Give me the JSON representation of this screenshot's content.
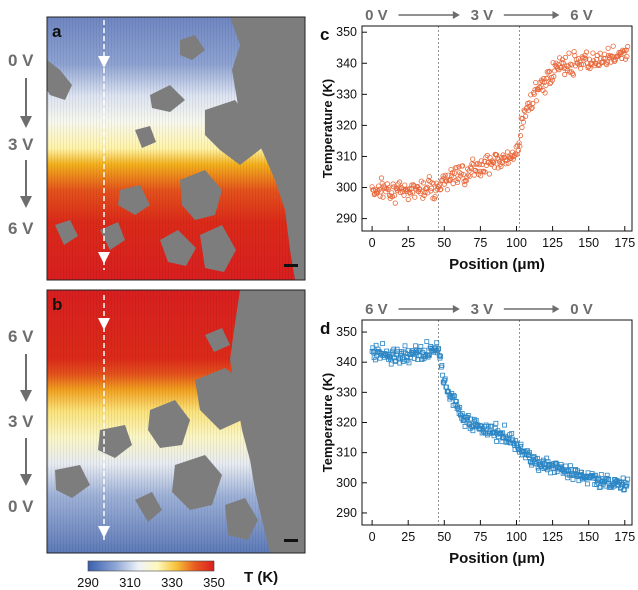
{
  "panels": {
    "a": {
      "label": "a",
      "voltages": [
        "0 V",
        "3 V",
        "6 V"
      ]
    },
    "b": {
      "label": "b",
      "voltages": [
        "6 V",
        "3 V",
        "0 V"
      ]
    }
  },
  "colorbar": {
    "ticks": [
      "290",
      "310",
      "330",
      "350"
    ],
    "label": "T (K)",
    "colors": [
      "#3a5fae",
      "#6f8fcb",
      "#dfe6f3",
      "#ffffd0",
      "#f7d23e",
      "#ea6b24",
      "#d91f1f"
    ]
  },
  "chart_data": [
    {
      "type": "scatter",
      "panel": "c",
      "sequence_labels": [
        "0 V",
        "3 V",
        "6 V"
      ],
      "xlabel": "Position (μm)",
      "ylabel": "Temperature (K)",
      "xlim": [
        -7,
        180
      ],
      "ylim": [
        286,
        352
      ],
      "x_ticks": [
        "0",
        "25",
        "50",
        "75",
        "100",
        "125",
        "150",
        "175"
      ],
      "y_ticks": [
        "290",
        "300",
        "310",
        "320",
        "330",
        "340",
        "350"
      ],
      "dividers_x": [
        46,
        102
      ],
      "marker": "circle",
      "color": "#e8673a",
      "trend": [
        [
          0,
          299.5
        ],
        [
          20,
          299
        ],
        [
          35,
          300
        ],
        [
          45,
          300.5
        ],
        [
          50,
          302
        ],
        [
          60,
          304
        ],
        [
          75,
          307
        ],
        [
          90,
          309
        ],
        [
          101,
          310.5
        ],
        [
          103,
          318
        ],
        [
          108,
          326
        ],
        [
          118,
          334
        ],
        [
          130,
          339
        ],
        [
          150,
          341
        ],
        [
          177,
          343
        ]
      ],
      "noise": 2.2,
      "points_per_unit": 2
    },
    {
      "type": "scatter",
      "panel": "d",
      "sequence_labels": [
        "6 V",
        "3 V",
        "0 V"
      ],
      "xlabel": "Position (μm)",
      "ylabel": "Temperature (K)",
      "xlim": [
        -7,
        180
      ],
      "ylim": [
        286,
        354
      ],
      "x_ticks": [
        "0",
        "25",
        "50",
        "75",
        "100",
        "125",
        "150",
        "175"
      ],
      "y_ticks": [
        "290",
        "300",
        "310",
        "320",
        "330",
        "340",
        "350"
      ],
      "dividers_x": [
        46,
        102
      ],
      "marker": "square",
      "color": "#2b86c5",
      "trend": [
        [
          0,
          344
        ],
        [
          15,
          342
        ],
        [
          30,
          343
        ],
        [
          40,
          343.5
        ],
        [
          46,
          345
        ],
        [
          50,
          333
        ],
        [
          55,
          328
        ],
        [
          62,
          322
        ],
        [
          75,
          318
        ],
        [
          90,
          316
        ],
        [
          100,
          313
        ],
        [
          110,
          308
        ],
        [
          125,
          305
        ],
        [
          140,
          303
        ],
        [
          160,
          300
        ],
        [
          177,
          299
        ]
      ],
      "noise": 1.8,
      "points_per_unit": 2.2
    }
  ]
}
